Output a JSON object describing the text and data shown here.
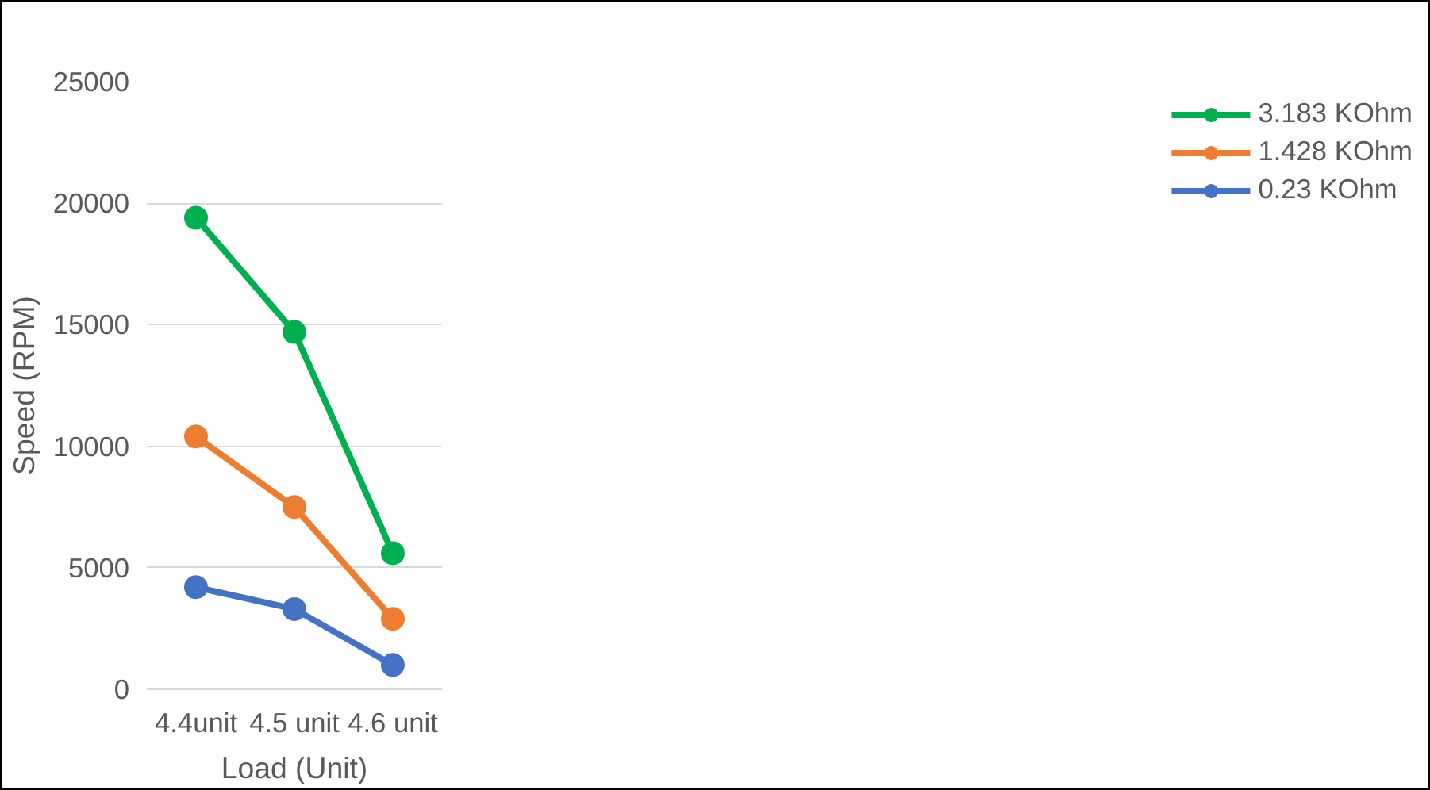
{
  "chart_data": {
    "type": "line",
    "xlabel": "Load (Unit)",
    "ylabel": "Speed (RPM)",
    "categories": [
      "4.4unit",
      "4.5 unit",
      "4.6 unit"
    ],
    "series": [
      {
        "name": "3.183 KOhm",
        "color": "#00b050",
        "values": [
          19400,
          14700,
          5600
        ]
      },
      {
        "name": "1.428 KOhm",
        "color": "#ed7d31",
        "values": [
          10400,
          7500,
          2900
        ]
      },
      {
        "name": "0.23 KOhm",
        "color": "#4472c4",
        "values": [
          4200,
          3300,
          1000
        ]
      }
    ],
    "ylim": [
      0,
      25000
    ],
    "yticks": [
      0,
      5000,
      10000,
      15000,
      20000,
      25000
    ],
    "grid": "y",
    "legend": "right",
    "marker": "circle",
    "line_style": "solid"
  }
}
